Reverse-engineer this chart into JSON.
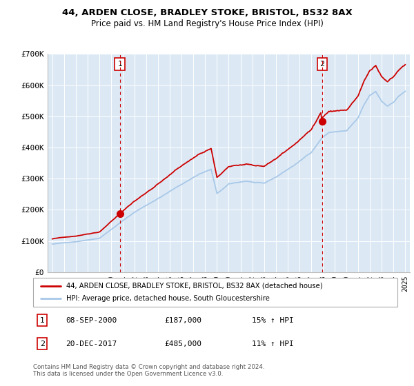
{
  "title1": "44, ARDEN CLOSE, BRADLEY STOKE, BRISTOL, BS32 8AX",
  "title2": "Price paid vs. HM Land Registry's House Price Index (HPI)",
  "hpi_color": "#a8c8e8",
  "price_color": "#cc0000",
  "plot_bg": "#dce9f5",
  "transaction1_year": 2000.75,
  "transaction1_price": 187000,
  "transaction1_label": "08-SEP-2000",
  "transaction1_hpi_text": "15% ↑ HPI",
  "transaction2_year": 2017.95,
  "transaction2_price": 485000,
  "transaction2_label": "20-DEC-2017",
  "transaction2_hpi_text": "11% ↑ HPI",
  "legend_label1": "44, ARDEN CLOSE, BRADLEY STOKE, BRISTOL, BS32 8AX (detached house)",
  "legend_label2": "HPI: Average price, detached house, South Gloucestershire",
  "footer": "Contains HM Land Registry data © Crown copyright and database right 2024.\nThis data is licensed under the Open Government Licence v3.0.",
  "ylim": [
    0,
    700000
  ],
  "yticks": [
    0,
    100000,
    200000,
    300000,
    400000,
    500000,
    600000,
    700000
  ],
  "ytick_labels": [
    "£0",
    "£100K",
    "£200K",
    "£300K",
    "£400K",
    "£500K",
    "£600K",
    "£700K"
  ],
  "xlim_left": 1994.6,
  "xlim_right": 2025.4
}
